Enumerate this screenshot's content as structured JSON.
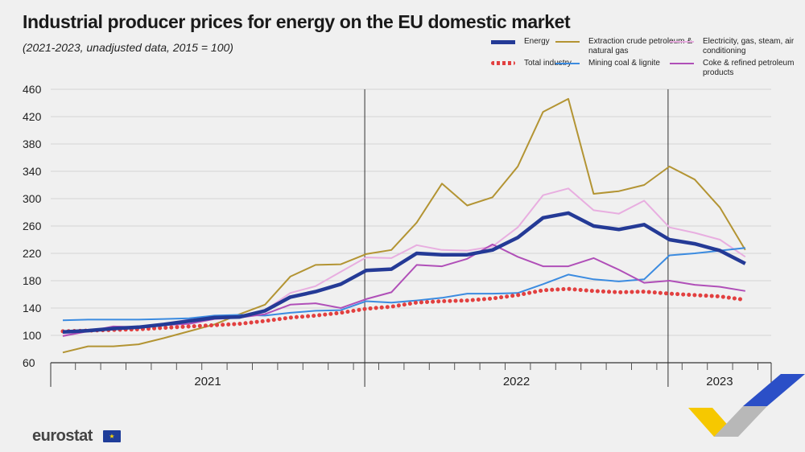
{
  "header": {
    "title": "Industrial producer prices for energy on the EU domestic market",
    "subtitle": "(2021-2023, unadjusted data, 2015 = 100)"
  },
  "footer": {
    "logo_text": "eurostat",
    "flag_icon": "eu-flag-icon"
  },
  "chart_data": {
    "type": "line",
    "title": "Industrial producer prices for energy on the EU domestic market",
    "subtitle": "(2021-2023, unadjusted data, 2015 = 100)",
    "xlabel": "",
    "ylabel": "",
    "ylim": [
      60,
      460
    ],
    "yticks": [
      "460",
      "420",
      "380",
      "340",
      "300",
      "260",
      "220",
      "180",
      "140",
      "100",
      "60"
    ],
    "grid": true,
    "legend_position": "top-right",
    "periods": [
      "2021",
      "2022",
      "2023"
    ],
    "x": [
      "2021-01",
      "2021-02",
      "2021-03",
      "2021-04",
      "2021-05",
      "2021-06",
      "2021-07",
      "2021-08",
      "2021-09",
      "2021-10",
      "2021-11",
      "2021-12",
      "2022-01",
      "2022-02",
      "2022-03",
      "2022-04",
      "2022-05",
      "2022-06",
      "2022-07",
      "2022-08",
      "2022-09",
      "2022-10",
      "2022-11",
      "2022-12",
      "2023-01",
      "2023-02",
      "2023-03",
      "2023-04"
    ],
    "series": [
      {
        "name": "Energy",
        "color": "#243a96",
        "values": [
          105,
          107,
          110,
          112,
          116,
          121,
          126,
          127,
          136,
          156,
          164,
          175,
          195,
          197,
          220,
          218,
          218,
          225,
          243,
          272,
          279,
          260,
          255,
          262,
          240,
          234,
          224,
          205
        ]
      },
      {
        "name": "Total industry",
        "color": "#e24040",
        "values": [
          106,
          107,
          108,
          109,
          111,
          113,
          115,
          117,
          121,
          126,
          129,
          133,
          139,
          142,
          148,
          150,
          151,
          154,
          159,
          166,
          168,
          165,
          163,
          164,
          161,
          159,
          157,
          152
        ]
      },
      {
        "name": "Extraction crude petroleum & natural gas",
        "color": "#b39433",
        "values": [
          75,
          84,
          84,
          87,
          96,
          106,
          116,
          131,
          145,
          186,
          203,
          204,
          219,
          225,
          265,
          322,
          290,
          302,
          347,
          427,
          446,
          307,
          311,
          320,
          347,
          328,
          287,
          225
        ]
      },
      {
        "name": "Mining coal & lignite",
        "color": "#3b8be0",
        "values": [
          122,
          123,
          123,
          123,
          124,
          125,
          129,
          130,
          129,
          133,
          136,
          137,
          150,
          148,
          151,
          155,
          161,
          161,
          162,
          175,
          189,
          182,
          179,
          182,
          217,
          220,
          224,
          228
        ]
      },
      {
        "name": "Electricity, gas, steam, air conditioning",
        "color": "#e8aee0",
        "values": [
          100,
          107,
          110,
          113,
          117,
          123,
          125,
          127,
          137,
          162,
          172,
          193,
          214,
          213,
          232,
          225,
          224,
          230,
          258,
          305,
          315,
          283,
          278,
          297,
          258,
          250,
          240,
          215
        ]
      },
      {
        "name": "Coke & refined petroleum products",
        "color": "#b04fb8",
        "values": [
          99,
          106,
          113,
          112,
          115,
          117,
          124,
          126,
          131,
          145,
          147,
          140,
          153,
          163,
          203,
          201,
          212,
          233,
          215,
          201,
          201,
          213,
          196,
          177,
          180,
          174,
          171,
          165
        ]
      }
    ]
  }
}
